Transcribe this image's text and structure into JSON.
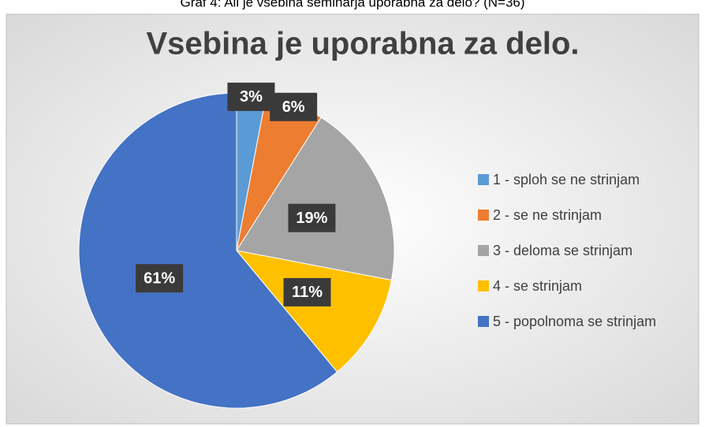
{
  "caption": "Graf 4: Ali je vsebina seminarja uporabna za delo? (N=36)",
  "chart_data": {
    "type": "pie",
    "title": "Vsebina je uporabna za delo.",
    "categories": [
      "1 - sploh se ne strinjam",
      "2 - se ne strinjam",
      "3 - deloma se strinjam",
      "4 - se strinjam",
      "5 - popolnoma se strinjam"
    ],
    "values": [
      3,
      6,
      19,
      11,
      61
    ],
    "value_labels": [
      "3%",
      "6%",
      "19%",
      "11%",
      "61%"
    ],
    "colors": [
      "#5b9bd5",
      "#ed7d31",
      "#a5a5a5",
      "#ffc000",
      "#4472c4"
    ],
    "legend": "right"
  }
}
